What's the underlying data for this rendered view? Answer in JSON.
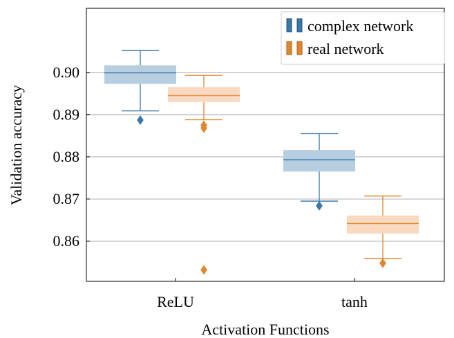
{
  "chart_data": {
    "type": "box",
    "title": "",
    "xlabel": "Activation Functions",
    "ylabel": "Validation accuracy",
    "categories": [
      "ReLU",
      "tanh"
    ],
    "ylim": [
      0.8505,
      0.9152
    ],
    "yticks": [
      0.86,
      0.87,
      0.88,
      0.89,
      0.9
    ],
    "ytick_labels": [
      "0.86",
      "0.87",
      "0.88",
      "0.89",
      "0.90"
    ],
    "grid": "horizontal",
    "legend": "top-right",
    "series": [
      {
        "name": "complex network",
        "color": "#3a78a8",
        "fill": "#b7cde0",
        "boxes": [
          {
            "category": "ReLU",
            "whisker_low": 0.8909,
            "q1": 0.8973,
            "median": 0.8999,
            "q3": 0.9017,
            "whisker_high": 0.9052,
            "outliers": [
              0.8887
            ]
          },
          {
            "category": "tanh",
            "whisker_low": 0.8695,
            "q1": 0.8765,
            "median": 0.8793,
            "q3": 0.8816,
            "whisker_high": 0.8855,
            "outliers": [
              0.8684
            ]
          }
        ]
      },
      {
        "name": "real network",
        "color": "#e0872e",
        "fill": "#f9d9bf",
        "boxes": [
          {
            "category": "ReLU",
            "whisker_low": 0.8888,
            "q1": 0.893,
            "median": 0.8945,
            "q3": 0.8965,
            "whisker_high": 0.8993,
            "outliers": [
              0.8875,
              0.8868,
              0.8532
            ]
          },
          {
            "category": "tanh",
            "whisker_low": 0.8559,
            "q1": 0.8618,
            "median": 0.8642,
            "q3": 0.8661,
            "whisker_high": 0.8707,
            "outliers": [
              0.8548
            ]
          }
        ]
      }
    ]
  }
}
